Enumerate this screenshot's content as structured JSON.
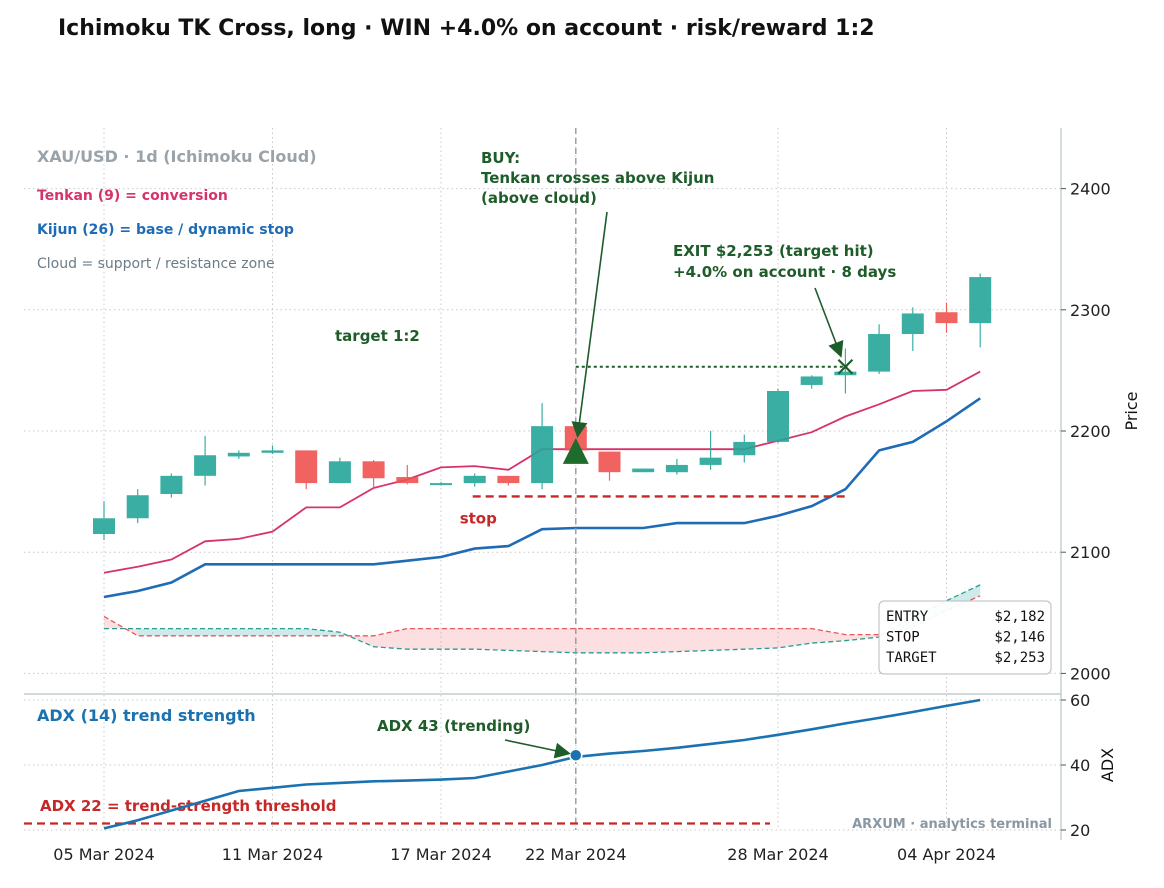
{
  "title": "Ichimoku TK Cross, long · WIN +4.0% on account · risk/reward 1:2",
  "chart_data": {
    "type": "candlestick",
    "symbol_label": "XAU/USD · 1d (Ichimoku Cloud)",
    "legend": [
      {
        "text": "Tenkan (9) = conversion",
        "color": "#d6336c"
      },
      {
        "text": "Kijun (26) = base / dynamic stop",
        "color": "#1f6bb5"
      },
      {
        "text": "Cloud = support / resistance zone",
        "color": "#6b7c86"
      }
    ],
    "ylabel": "Price",
    "ylim": [
      1983,
      2450
    ],
    "yticks": [
      2000,
      2100,
      2200,
      2300,
      2400
    ],
    "xticks": [
      {
        "i": 0,
        "label": "05 Mar 2024"
      },
      {
        "i": 5,
        "label": "11 Mar 2024"
      },
      {
        "i": 10,
        "label": "17 Mar 2024"
      },
      {
        "i": 14,
        "label": "22 Mar 2024"
      },
      {
        "i": 20,
        "label": "28 Mar 2024"
      },
      {
        "i": 25,
        "label": "04 Apr 2024"
      }
    ],
    "candles": [
      {
        "o": 2115,
        "h": 2142,
        "l": 2110,
        "c": 2128
      },
      {
        "o": 2128,
        "h": 2152,
        "l": 2124,
        "c": 2147
      },
      {
        "o": 2148,
        "h": 2165,
        "l": 2145,
        "c": 2163
      },
      {
        "o": 2163,
        "h": 2196,
        "l": 2155,
        "c": 2180
      },
      {
        "o": 2179,
        "h": 2184,
        "l": 2177,
        "c": 2182
      },
      {
        "o": 2182,
        "h": 2188,
        "l": 2181,
        "c": 2184
      },
      {
        "o": 2184,
        "h": 2184,
        "l": 2152,
        "c": 2157
      },
      {
        "o": 2157,
        "h": 2178,
        "l": 2157,
        "c": 2175
      },
      {
        "o": 2175,
        "h": 2176,
        "l": 2152,
        "c": 2161
      },
      {
        "o": 2162,
        "h": 2172,
        "l": 2156,
        "c": 2157
      },
      {
        "o": 2156,
        "h": 2158,
        "l": 2155,
        "c": 2157
      },
      {
        "o": 2157,
        "h": 2165,
        "l": 2154,
        "c": 2163
      },
      {
        "o": 2163,
        "h": 2163,
        "l": 2155,
        "c": 2157
      },
      {
        "o": 2157,
        "h": 2223,
        "l": 2152,
        "c": 2204
      },
      {
        "o": 2204,
        "h": 2211,
        "l": 2182,
        "c": 2184
      },
      {
        "o": 2183,
        "h": 2183,
        "l": 2159,
        "c": 2166
      },
      {
        "o": 2166,
        "h": 2169,
        "l": 2166,
        "c": 2169
      },
      {
        "o": 2166,
        "h": 2177,
        "l": 2164,
        "c": 2172
      },
      {
        "o": 2172,
        "h": 2200,
        "l": 2168,
        "c": 2178
      },
      {
        "o": 2180,
        "h": 2197,
        "l": 2174,
        "c": 2191
      },
      {
        "o": 2191,
        "h": 2235,
        "l": 2190,
        "c": 2233
      },
      {
        "o": 2238,
        "h": 2246,
        "l": 2235,
        "c": 2245
      },
      {
        "o": 2246,
        "h": 2268,
        "l": 2231,
        "c": 2249
      },
      {
        "o": 2249,
        "h": 2288,
        "l": 2247,
        "c": 2280
      },
      {
        "o": 2280,
        "h": 2302,
        "l": 2266,
        "c": 2297
      },
      {
        "o": 2298,
        "h": 2306,
        "l": 2281,
        "c": 2289
      },
      {
        "o": 2289,
        "h": 2330,
        "l": 2269,
        "c": 2327
      }
    ],
    "tenkan": [
      2083,
      2088,
      2094,
      2109,
      2111,
      2117,
      2137,
      2137,
      2153,
      2160,
      2170,
      2171,
      2168,
      2185,
      2185,
      2185,
      2185,
      2185,
      2185,
      2185,
      2192,
      2199,
      2212,
      2222,
      2233,
      2234,
      2249
    ],
    "kijun": [
      2063,
      2068,
      2075,
      2090,
      2090,
      2090,
      2090,
      2090,
      2090,
      2093,
      2096,
      2103,
      2105,
      2119,
      2120,
      2120,
      2120,
      2124,
      2124,
      2124,
      2130,
      2138,
      2152,
      2184,
      2191,
      2208,
      2227
    ],
    "senkou_a": [
      2037,
      2037,
      2037,
      2037,
      2037,
      2037,
      2037,
      2034,
      2022,
      2020,
      2020,
      2020,
      2019,
      2018,
      2017,
      2017,
      2017,
      2018,
      2019,
      2020,
      2021,
      2025,
      2027,
      2030,
      2046,
      2060,
      2073
    ],
    "senkou_b": [
      2047,
      2031,
      2031,
      2031,
      2031,
      2031,
      2031,
      2031,
      2031,
      2037,
      2037,
      2037,
      2037,
      2037,
      2037,
      2037,
      2037,
      2037,
      2037,
      2037,
      2037,
      2037,
      2032,
      2032,
      2038,
      2052,
      2064
    ],
    "entry": {
      "i": 14,
      "price": 2182
    },
    "stop": {
      "price": 2146,
      "from_i": 11,
      "to_i": 22,
      "label": "stop"
    },
    "target": {
      "price": 2253,
      "from_i": 14,
      "to_i": 22,
      "label": "target 1:2"
    },
    "exit": {
      "i": 22,
      "price": 2253
    },
    "annotations": {
      "buy": [
        "BUY:",
        "Tenkan crosses above Kijun",
        "(above cloud)"
      ],
      "exit": [
        "EXIT $2,253 (target hit)",
        "+4.0% on account  ·  8 days"
      ]
    },
    "info_box": [
      {
        "k": "ENTRY",
        "v": "$2,182"
      },
      {
        "k": "STOP",
        "v": "$2,146"
      },
      {
        "k": "TARGET",
        "v": "$2,253"
      }
    ],
    "adx": {
      "title": "ADX (14) trend strength",
      "ylabel": "ADX",
      "ylim": [
        20,
        60
      ],
      "yticks": [
        20,
        40,
        60
      ],
      "values": [
        20.5,
        23,
        26,
        29,
        32,
        33,
        34,
        34.5,
        35,
        35.2,
        35.5,
        36,
        38,
        40,
        42.5,
        43.5,
        44.3,
        45.3,
        46.5,
        47.7,
        49.3,
        51,
        52.8,
        54.5,
        56.3,
        58.2,
        60
      ],
      "threshold": 22,
      "threshold_label": "ADX 22 = trend-strength threshold",
      "marker": {
        "i": 14,
        "value": 43,
        "label": "ADX 43 (trending)"
      }
    },
    "watermark": "ARXUM · analytics terminal"
  }
}
